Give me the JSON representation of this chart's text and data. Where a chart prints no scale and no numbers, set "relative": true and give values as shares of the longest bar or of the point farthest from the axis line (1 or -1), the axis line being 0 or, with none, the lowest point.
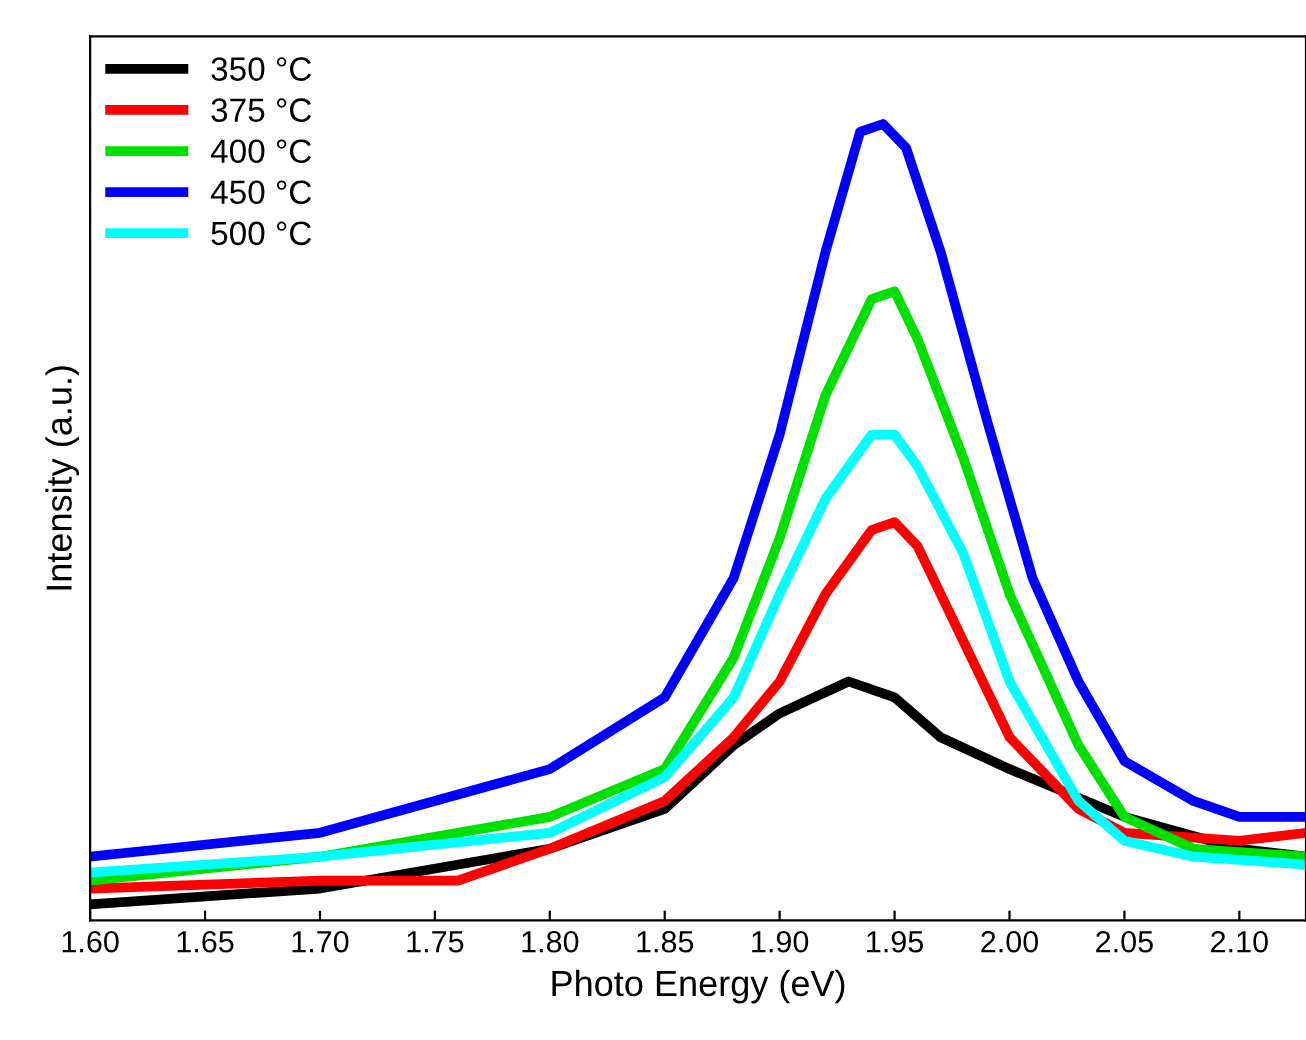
{
  "chart_data": {
    "type": "line",
    "xlabel": "Photo Energy (eV)",
    "ylabel": "Intensity (a.u.)",
    "relative": true,
    "xlim": [
      1.6,
      2.129
    ],
    "xticks": [
      {
        "value": 1.6,
        "label": "1.60"
      },
      {
        "value": 1.65,
        "label": "1.65"
      },
      {
        "value": 1.7,
        "label": "1.70"
      },
      {
        "value": 1.75,
        "label": "1.75"
      },
      {
        "value": 1.8,
        "label": "1.80"
      },
      {
        "value": 1.85,
        "label": "1.85"
      },
      {
        "value": 1.9,
        "label": "1.90"
      },
      {
        "value": 1.95,
        "label": "1.95"
      },
      {
        "value": 2.0,
        "label": "2.00"
      },
      {
        "value": 2.05,
        "label": "2.05"
      },
      {
        "value": 2.1,
        "label": "2.10"
      }
    ],
    "tick_labels": "x",
    "legend": "top left",
    "grid": false,
    "marker": "none",
    "line_style": "solid",
    "series": [
      {
        "name": "350 °C",
        "color": "#000000",
        "x": [
          1.6,
          1.7,
          1.8,
          1.85,
          1.88,
          1.9,
          1.93,
          1.95,
          1.97,
          2.0,
          2.05,
          2.1,
          2.129
        ],
        "values": [
          0.02,
          0.04,
          0.09,
          0.14,
          0.22,
          0.26,
          0.3,
          0.28,
          0.23,
          0.19,
          0.13,
          0.09,
          0.08
        ]
      },
      {
        "name": "375 °C",
        "color": "#ff0000",
        "x": [
          1.6,
          1.7,
          1.76,
          1.8,
          1.85,
          1.88,
          1.9,
          1.92,
          1.94,
          1.95,
          1.96,
          1.98,
          2.0,
          2.03,
          2.05,
          2.1,
          2.129
        ],
        "values": [
          0.04,
          0.05,
          0.05,
          0.09,
          0.15,
          0.23,
          0.3,
          0.41,
          0.49,
          0.5,
          0.47,
          0.35,
          0.23,
          0.14,
          0.11,
          0.1,
          0.11
        ]
      },
      {
        "name": "400 °C",
        "color": "#00e000",
        "x": [
          1.6,
          1.7,
          1.8,
          1.85,
          1.88,
          1.9,
          1.92,
          1.94,
          1.95,
          1.96,
          1.98,
          2.0,
          2.03,
          2.05,
          2.08,
          2.129
        ],
        "values": [
          0.05,
          0.08,
          0.13,
          0.19,
          0.33,
          0.48,
          0.66,
          0.78,
          0.79,
          0.73,
          0.58,
          0.41,
          0.22,
          0.13,
          0.09,
          0.08
        ]
      },
      {
        "name": "450 °C",
        "color": "#0000ff",
        "x": [
          1.6,
          1.7,
          1.8,
          1.85,
          1.88,
          1.9,
          1.92,
          1.935,
          1.945,
          1.955,
          1.97,
          1.99,
          2.01,
          2.03,
          2.05,
          2.08,
          2.1,
          2.129
        ],
        "values": [
          0.08,
          0.11,
          0.19,
          0.28,
          0.43,
          0.61,
          0.84,
          0.99,
          1,
          0.97,
          0.84,
          0.63,
          0.43,
          0.3,
          0.2,
          0.15,
          0.13,
          0.13
        ]
      },
      {
        "name": "500 °C",
        "color": "#00ffff",
        "x": [
          1.6,
          1.7,
          1.8,
          1.85,
          1.88,
          1.9,
          1.92,
          1.94,
          1.95,
          1.96,
          1.98,
          2.0,
          2.03,
          2.05,
          2.08,
          2.129
        ],
        "values": [
          0.06,
          0.08,
          0.11,
          0.18,
          0.28,
          0.41,
          0.53,
          0.61,
          0.61,
          0.57,
          0.46,
          0.3,
          0.15,
          0.1,
          0.08,
          0.07
        ]
      }
    ]
  }
}
